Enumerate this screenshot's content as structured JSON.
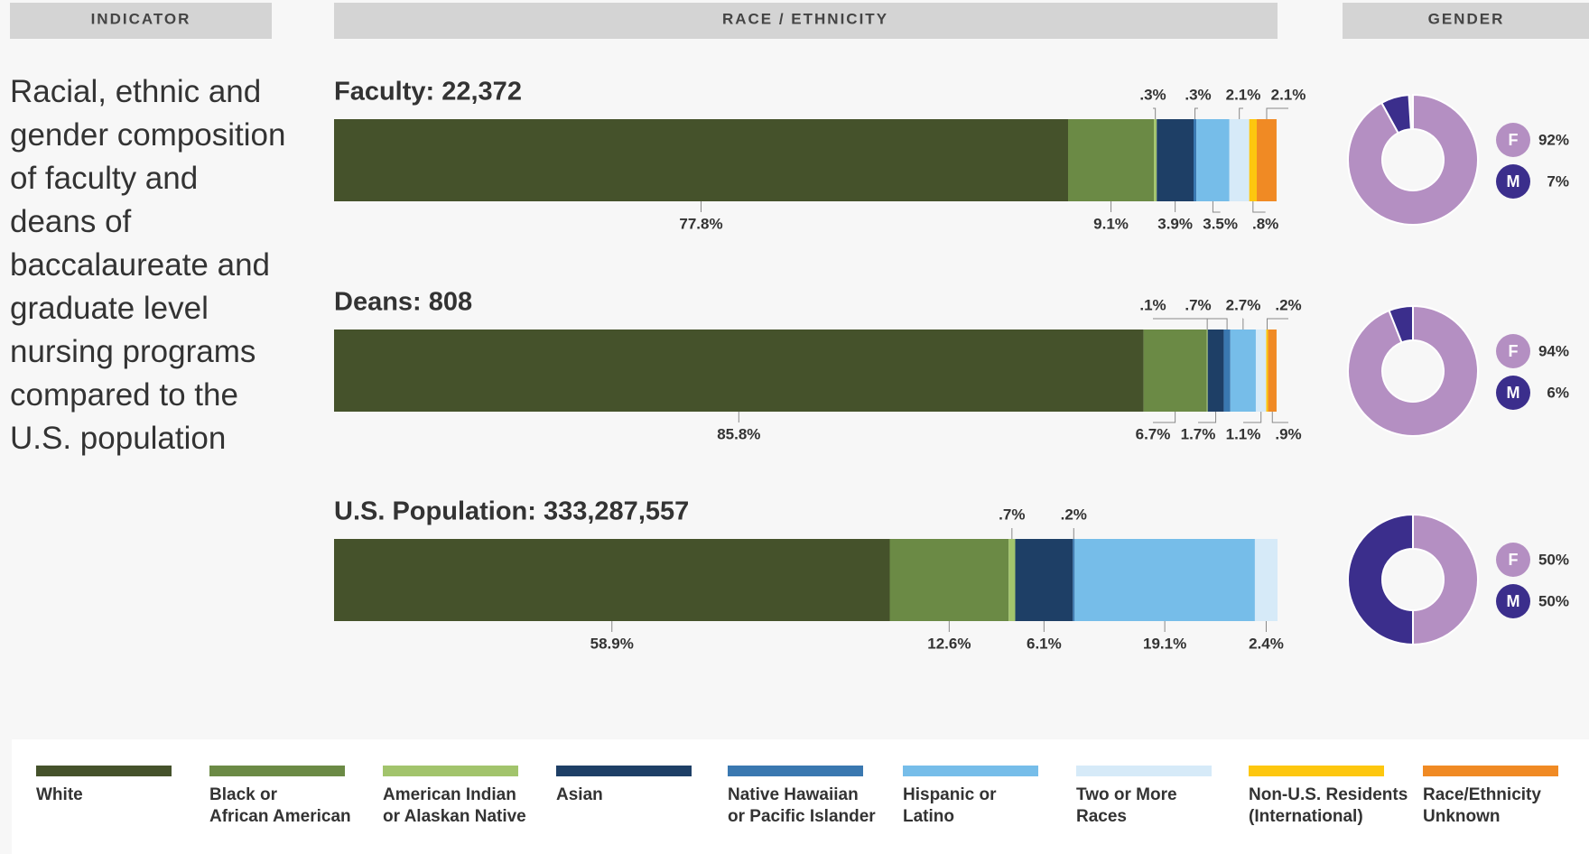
{
  "headers": [
    "INDICATOR",
    "RACE / ETHNICITY",
    "GENDER"
  ],
  "indicator": "Racial, ethnic and\ngender composition\nof faculty and\ndeans of\nbaccalaureate and\ngraduate level\nnursing programs\ncompared to the\nU.S. population",
  "legend": {
    "names": [
      "White",
      "Black or\nAfrican American",
      "American Indian\nor Alaskan Native",
      "Asian",
      "Native Hawaiian\nor Pacific Islander",
      "Hispanic or\nLatino",
      "Two or More\nRaces",
      "Non-U.S. Residents\n(International)",
      "Race/Ethnicity\nUnknown"
    ],
    "colors": [
      "#45522b",
      "#6b8a45",
      "#a2c46c",
      "#1e3f66",
      "#3a78b0",
      "#76bde9",
      "#d6eaf8",
      "#fdc70f",
      "#f08a24"
    ]
  },
  "chart_data": [
    {
      "type": "stacked-bar",
      "title": "Faculty: 22,372",
      "xlim": [
        0,
        100
      ],
      "values": [
        77.8,
        9.1,
        0.3,
        3.9,
        0.3,
        3.5,
        2.1,
        0.8,
        2.1
      ],
      "value_labels": [
        "77.8%",
        "9.1%",
        ".3%",
        "3.9%",
        ".3%",
        "3.5%",
        "2.1%",
        ".8%",
        "2.1%"
      ]
    },
    {
      "type": "donut",
      "categories": [
        "F",
        "M"
      ],
      "colors": [
        "#b48fc2",
        "#3b2e8c"
      ],
      "values": [
        92,
        7
      ],
      "value_labels": [
        "92%",
        "7%"
      ]
    },
    {
      "type": "stacked-bar",
      "title": "Deans: 808",
      "xlim": [
        0,
        100
      ],
      "values": [
        85.8,
        6.7,
        0.1,
        1.7,
        0.7,
        2.7,
        1.1,
        0.2,
        0.9
      ],
      "value_labels": [
        "85.8%",
        "6.7%",
        ".1%",
        "1.7%",
        ".7%",
        "2.7%",
        "1.1%",
        ".2%",
        ".9%"
      ]
    },
    {
      "type": "donut",
      "categories": [
        "F",
        "M"
      ],
      "colors": [
        "#b48fc2",
        "#3b2e8c"
      ],
      "values": [
        94,
        6
      ],
      "value_labels": [
        "94%",
        "6%"
      ]
    },
    {
      "type": "stacked-bar",
      "title": "U.S. Population: 333,287,557",
      "xlim": [
        0,
        100
      ],
      "values": [
        58.9,
        12.6,
        0.7,
        6.1,
        0.2,
        19.1,
        2.4,
        null,
        null
      ],
      "value_labels": [
        "58.9%",
        "12.6%",
        ".7%",
        "6.1%",
        ".2%",
        "19.1%",
        "2.4%",
        null,
        null
      ]
    },
    {
      "type": "donut",
      "categories": [
        "F",
        "M"
      ],
      "colors": [
        "#b48fc2",
        "#3b2e8c"
      ],
      "values": [
        50,
        50
      ],
      "value_labels": [
        "50%",
        "50%"
      ]
    }
  ]
}
